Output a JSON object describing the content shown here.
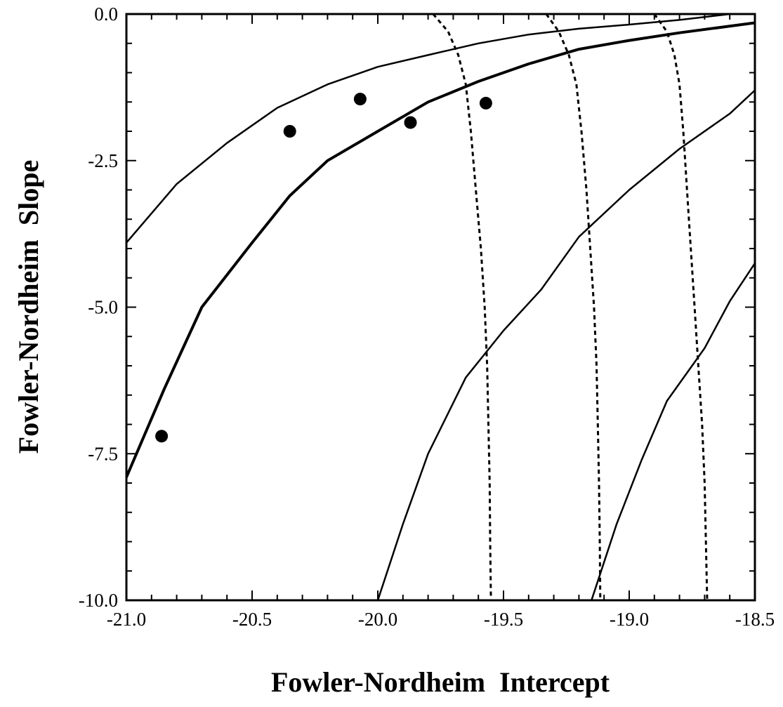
{
  "chart_data": {
    "type": "line",
    "title": "",
    "xlabel": "Fowler-Nordheim  Intercept",
    "ylabel": "Fowler-Nordheim  Slope",
    "xlim": [
      -21.0,
      -18.5
    ],
    "ylim": [
      -10.0,
      0.0
    ],
    "grid": false,
    "legend": "none",
    "x_ticks": [
      -21.0,
      -20.5,
      -20.0,
      -19.5,
      -19.0,
      -18.5
    ],
    "x_tick_labels": [
      "-21.0",
      "-20.5",
      "-20.0",
      "-19.5",
      "-19.0",
      "-18.5"
    ],
    "y_ticks": [
      0.0,
      -2.5,
      -5.0,
      -7.5,
      -10.0
    ],
    "y_tick_labels": [
      "0.0",
      "-2.5",
      "-5.0",
      "-7.5",
      "-10.0"
    ],
    "series": [
      {
        "style": "solid",
        "points": [
          [
            -21.0,
            -3.9
          ],
          [
            -20.8,
            -2.9
          ],
          [
            -20.6,
            -2.2
          ],
          [
            -20.4,
            -1.6
          ],
          [
            -20.2,
            -1.2
          ],
          [
            -20.0,
            -0.9
          ],
          [
            -19.8,
            -0.7
          ],
          [
            -19.6,
            -0.5
          ],
          [
            -19.4,
            -0.35
          ],
          [
            -19.2,
            -0.25
          ],
          [
            -19.0,
            -0.18
          ],
          [
            -18.8,
            -0.1
          ],
          [
            -18.5,
            0.05
          ]
        ]
      },
      {
        "style": "solid-thick",
        "points": [
          [
            -21.0,
            -7.9
          ],
          [
            -20.85,
            -6.4
          ],
          [
            -20.7,
            -5.0
          ],
          [
            -20.5,
            -3.9
          ],
          [
            -20.35,
            -3.1
          ],
          [
            -20.2,
            -2.5
          ],
          [
            -20.0,
            -2.0
          ],
          [
            -19.8,
            -1.5
          ],
          [
            -19.6,
            -1.15
          ],
          [
            -19.4,
            -0.85
          ],
          [
            -19.2,
            -0.6
          ],
          [
            -19.0,
            -0.45
          ],
          [
            -18.8,
            -0.32
          ],
          [
            -18.5,
            -0.15
          ]
        ]
      },
      {
        "style": "solid",
        "points": [
          [
            -20.0,
            -10.0
          ],
          [
            -19.9,
            -8.7
          ],
          [
            -19.8,
            -7.5
          ],
          [
            -19.65,
            -6.2
          ],
          [
            -19.5,
            -5.4
          ],
          [
            -19.35,
            -4.7
          ],
          [
            -19.2,
            -3.8
          ],
          [
            -19.0,
            -3.0
          ],
          [
            -18.8,
            -2.3
          ],
          [
            -18.6,
            -1.7
          ],
          [
            -18.5,
            -1.3
          ]
        ]
      },
      {
        "style": "solid",
        "points": [
          [
            -19.15,
            -10.0
          ],
          [
            -19.05,
            -8.7
          ],
          [
            -18.95,
            -7.6
          ],
          [
            -18.85,
            -6.6
          ],
          [
            -18.7,
            -5.7
          ],
          [
            -18.6,
            -4.9
          ],
          [
            -18.5,
            -4.25
          ]
        ]
      },
      {
        "style": "dashed",
        "points": [
          [
            -19.78,
            0.0
          ],
          [
            -19.72,
            -0.3
          ],
          [
            -19.68,
            -0.7
          ],
          [
            -19.65,
            -1.2
          ],
          [
            -19.63,
            -2.0
          ],
          [
            -19.61,
            -3.0
          ],
          [
            -19.59,
            -4.0
          ],
          [
            -19.575,
            -5.0
          ],
          [
            -19.565,
            -6.0
          ],
          [
            -19.56,
            -7.0
          ],
          [
            -19.555,
            -8.0
          ],
          [
            -19.553,
            -9.0
          ],
          [
            -19.55,
            -10.0
          ]
        ]
      },
      {
        "style": "dashed",
        "points": [
          [
            -19.33,
            0.0
          ],
          [
            -19.28,
            -0.3
          ],
          [
            -19.24,
            -0.7
          ],
          [
            -19.21,
            -1.2
          ],
          [
            -19.19,
            -2.0
          ],
          [
            -19.17,
            -3.0
          ],
          [
            -19.155,
            -4.0
          ],
          [
            -19.14,
            -5.0
          ],
          [
            -19.13,
            -6.0
          ],
          [
            -19.125,
            -7.0
          ],
          [
            -19.12,
            -8.0
          ],
          [
            -19.117,
            -9.0
          ],
          [
            -19.115,
            -10.0
          ]
        ]
      },
      {
        "style": "dashed",
        "points": [
          [
            -18.9,
            0.0
          ],
          [
            -18.85,
            -0.3
          ],
          [
            -18.82,
            -0.7
          ],
          [
            -18.8,
            -1.2
          ],
          [
            -18.785,
            -2.0
          ],
          [
            -18.77,
            -3.0
          ],
          [
            -18.755,
            -4.0
          ],
          [
            -18.74,
            -5.0
          ],
          [
            -18.725,
            -6.0
          ],
          [
            -18.71,
            -7.0
          ],
          [
            -18.7,
            -8.0
          ],
          [
            -18.695,
            -9.0
          ],
          [
            -18.69,
            -10.0
          ]
        ]
      }
    ],
    "scatter": [
      [
        -20.86,
        -7.2
      ],
      [
        -20.35,
        -2.0
      ],
      [
        -20.07,
        -1.45
      ],
      [
        -19.87,
        -1.85
      ],
      [
        -19.57,
        -1.52
      ]
    ]
  }
}
